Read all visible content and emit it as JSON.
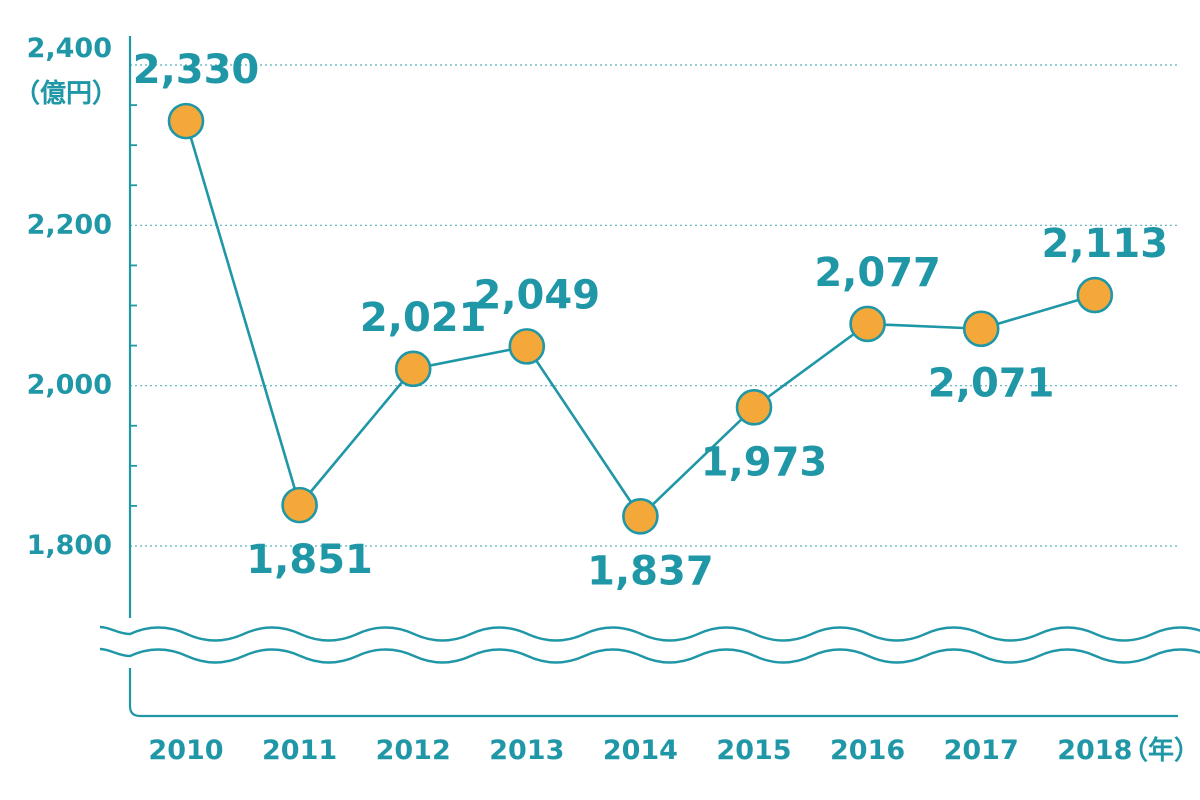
{
  "chart_data": {
    "type": "line",
    "x": [
      "2010",
      "2011",
      "2012",
      "2013",
      "2014",
      "2015",
      "2016",
      "2017",
      "2018"
    ],
    "values": [
      2330,
      1851,
      2021,
      2049,
      1837,
      1973,
      2077,
      2071,
      2113
    ],
    "value_labels": [
      "2,330",
      "1,851",
      "2,021",
      "2,049",
      "1,837",
      "1,973",
      "2,077",
      "2,071",
      "2,113"
    ],
    "label_positions": [
      "above",
      "below",
      "above",
      "above",
      "below",
      "below",
      "above",
      "below",
      "above"
    ],
    "y_ticks": [
      {
        "value": 1800,
        "label": "1,800"
      },
      {
        "value": 2000,
        "label": "2,000"
      },
      {
        "value": 2200,
        "label": "2,200"
      },
      {
        "value": 2400,
        "label": "2,400"
      }
    ],
    "y_unit": "（億円）",
    "x_unit": "（年）",
    "ylim": [
      1800,
      2400
    ],
    "axis_break": true,
    "grid": true,
    "colors": {
      "line": "#1f97a6",
      "marker_fill": "#f5a83a",
      "marker_stroke": "#1f97a6",
      "text": "#1f97a6",
      "grid": "#1f97a6"
    }
  }
}
